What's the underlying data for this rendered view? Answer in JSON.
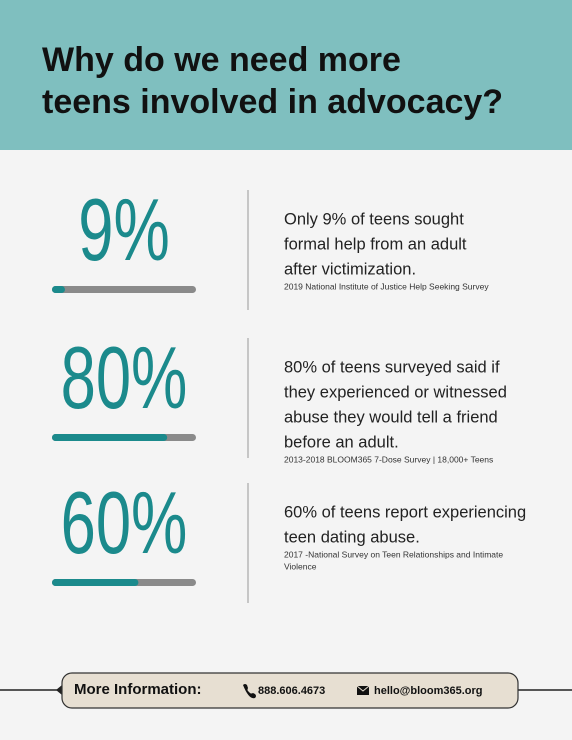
{
  "header": {
    "title": [
      "Why do we need more",
      "teens involved in advocacy?"
    ]
  },
  "stats": [
    {
      "label": "9%",
      "value": 9,
      "text": [
        "Only 9% of teens sought",
        "formal help from an adult",
        "after victimization."
      ],
      "source": [
        "2019 National Institute of Justice Help Seeking Survey"
      ]
    },
    {
      "label": "80%",
      "value": 80,
      "text": [
        "80% of teens surveyed said if",
        "they experienced or witnessed",
        "abuse they would tell a friend",
        "before an adult."
      ],
      "source": [
        "2013-2018 BLOOM365 7-Dose Survey | 18,000+ Teens"
      ]
    },
    {
      "label": "60%",
      "value": 60,
      "text": [
        "60% of teens report experiencing",
        "teen dating abuse."
      ],
      "source": [
        "2017 -National Survey on Teen Relationships and Intimate",
        "Violence"
      ]
    }
  ],
  "footer": {
    "heading": "More Information:",
    "phone": "888.606.4673",
    "email": "hello@bloom365.org"
  }
}
